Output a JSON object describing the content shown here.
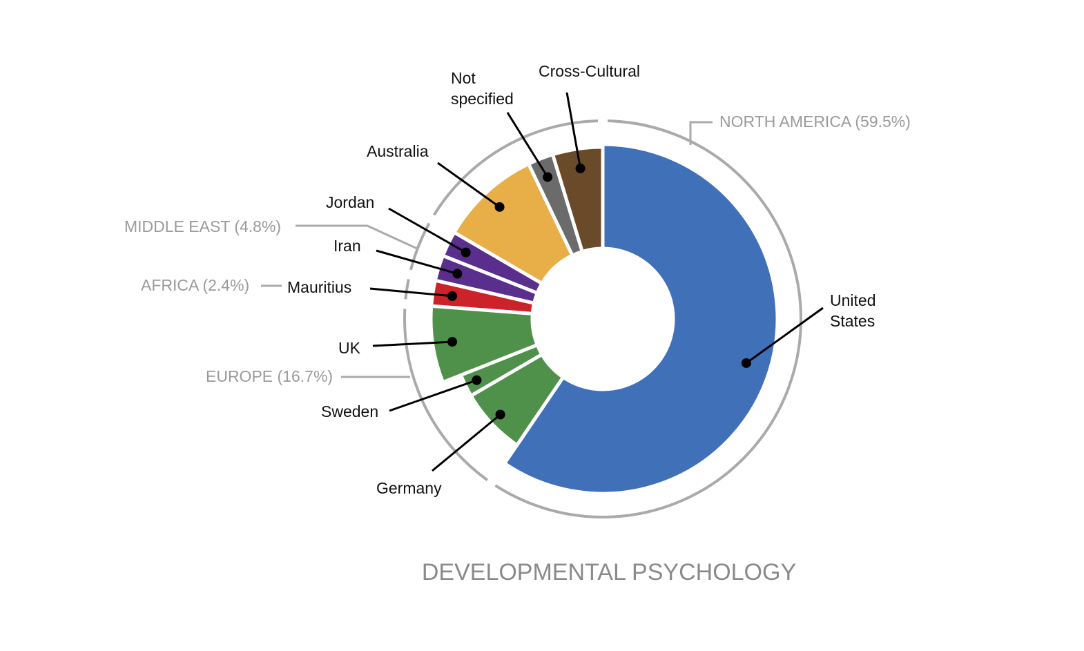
{
  "chart_data": {
    "type": "pie",
    "title": "DEVELOPMENTAL PSYCHOLOGY",
    "regions": [
      {
        "name": "NORTH AMERICA",
        "label": "NORTH AMERICA (59.5%)",
        "value": 59.5,
        "color": "#aaaaaa"
      },
      {
        "name": "EUROPE",
        "label": "EUROPE (16.7%)",
        "value": 16.7,
        "color": "#aaaaaa"
      },
      {
        "name": "AFRICA",
        "label": "AFRICA (2.4%)",
        "value": 2.4,
        "color": "#aaaaaa"
      },
      {
        "name": "MIDDLE EAST",
        "label": "MIDDLE EAST (4.8%)",
        "value": 4.8,
        "color": "#aaaaaa"
      }
    ],
    "series": [
      {
        "name": "United States",
        "value": 59.5,
        "color": "#4070b8"
      },
      {
        "name": "Germany",
        "value": 7.1,
        "color": "#4f914a"
      },
      {
        "name": "Sweden",
        "value": 2.4,
        "color": "#4f914a"
      },
      {
        "name": "UK",
        "value": 7.2,
        "color": "#4f914a"
      },
      {
        "name": "Mauritius",
        "value": 2.4,
        "color": "#cc2229"
      },
      {
        "name": "Iran",
        "value": 2.4,
        "color": "#5a2e8c"
      },
      {
        "name": "Jordan",
        "value": 2.4,
        "color": "#5a2e8c"
      },
      {
        "name": "Australia",
        "value": 9.5,
        "color": "#e8ae47"
      },
      {
        "name": "Not specified",
        "value": 2.4,
        "color": "#6b6b6b"
      },
      {
        "name": "Cross-Cultural",
        "value": 4.7,
        "color": "#6b4a2a"
      }
    ],
    "labels": {
      "united_states": [
        "United",
        "States"
      ],
      "germany": "Germany",
      "sweden": "Sweden",
      "uk": "UK",
      "mauritius": "Mauritius",
      "iran": "Iran",
      "jordan": "Jordan",
      "australia": "Australia",
      "not_specified": [
        "Not",
        "specified"
      ],
      "cross_cultural": "Cross-Cultural"
    }
  }
}
